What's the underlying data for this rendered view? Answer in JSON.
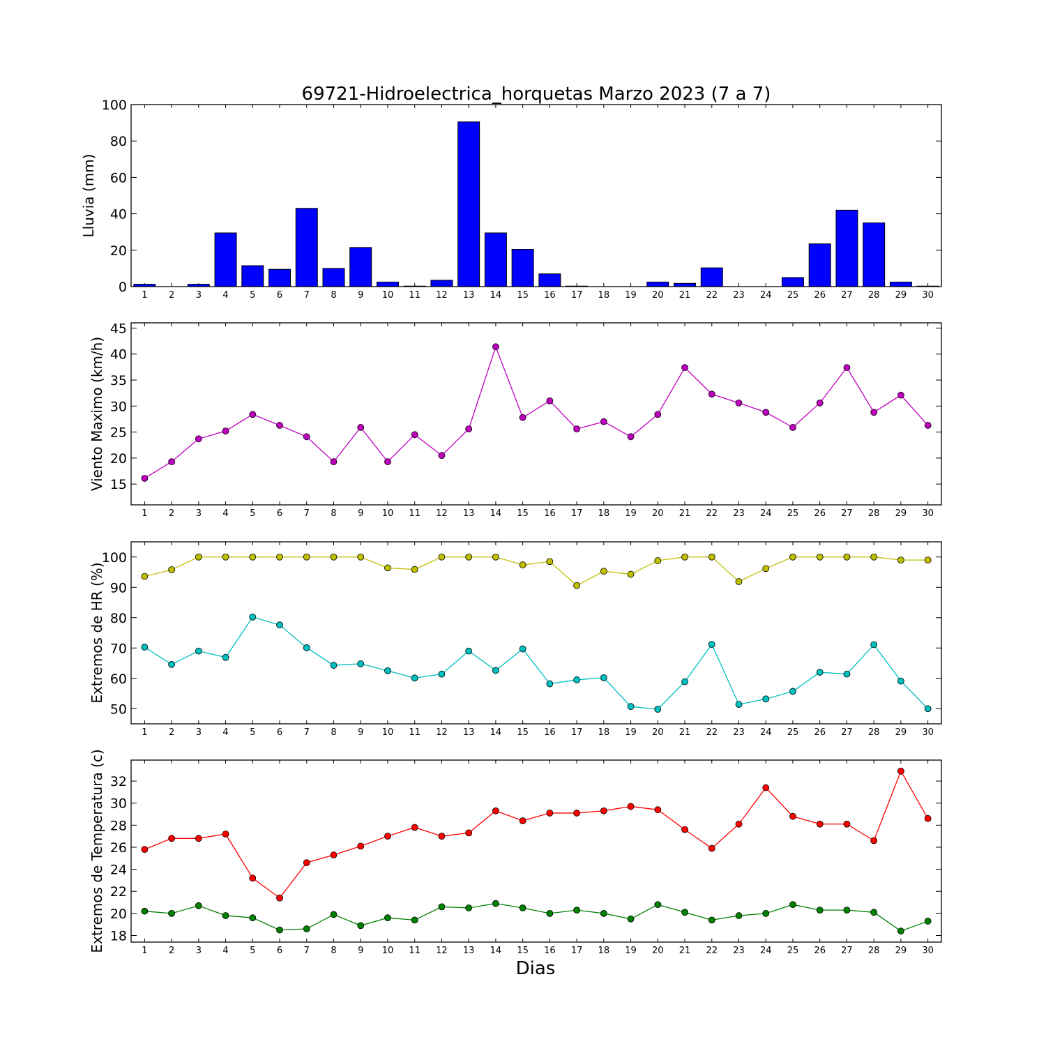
{
  "title": "69721-Hidroelectrica_horquetas Marzo 2023  (7 a 7)",
  "xlabel": "Dias",
  "days": [
    1,
    2,
    3,
    4,
    5,
    6,
    7,
    8,
    9,
    10,
    11,
    12,
    13,
    14,
    15,
    16,
    17,
    18,
    19,
    20,
    21,
    22,
    23,
    24,
    25,
    26,
    27,
    28,
    29,
    30
  ],
  "chart_data": [
    {
      "type": "bar",
      "ylabel": "Lluvia (mm)",
      "ylim": [
        0,
        100
      ],
      "yticks": [
        0,
        20,
        40,
        60,
        80,
        100
      ],
      "categories": [
        1,
        2,
        3,
        4,
        5,
        6,
        7,
        8,
        9,
        10,
        11,
        12,
        13,
        14,
        15,
        16,
        17,
        18,
        19,
        20,
        21,
        22,
        23,
        24,
        25,
        26,
        27,
        28,
        29,
        30
      ],
      "series": [
        {
          "color": "#0000ff",
          "values": [
            1.3,
            0,
            1.3,
            29.5,
            11.5,
            9.5,
            43,
            10,
            21.5,
            2.5,
            0.3,
            3.5,
            90.5,
            29.5,
            20.5,
            7,
            0.3,
            0,
            0,
            2.5,
            1.8,
            10.3,
            0,
            0,
            5,
            23.5,
            42,
            35,
            2.5,
            0.3
          ]
        }
      ]
    },
    {
      "type": "line",
      "ylabel": "Viento Maximo (km/h)",
      "ylim": [
        11,
        46
      ],
      "yticks": [
        15,
        20,
        25,
        30,
        35,
        40,
        45
      ],
      "x": [
        1,
        2,
        3,
        4,
        5,
        6,
        7,
        8,
        9,
        10,
        11,
        12,
        13,
        14,
        15,
        16,
        17,
        18,
        19,
        20,
        21,
        22,
        23,
        24,
        25,
        26,
        27,
        28,
        29,
        30
      ],
      "series": [
        {
          "color": "#bf00bf",
          "values": [
            16.1,
            19.3,
            23.7,
            25.2,
            28.4,
            26.3,
            24.1,
            19.3,
            25.9,
            19.3,
            24.5,
            20.5,
            25.6,
            41.4,
            27.8,
            31,
            25.6,
            27,
            24.1,
            28.4,
            37.4,
            32.3,
            30.6,
            28.8,
            25.9,
            30.6,
            37.4,
            28.8,
            32.1,
            26.3
          ]
        }
      ]
    },
    {
      "type": "line",
      "ylabel": "Extremos de HR (%)",
      "ylim": [
        45,
        105
      ],
      "yticks": [
        50,
        60,
        70,
        80,
        90,
        100
      ],
      "x": [
        1,
        2,
        3,
        4,
        5,
        6,
        7,
        8,
        9,
        10,
        11,
        12,
        13,
        14,
        15,
        16,
        17,
        18,
        19,
        20,
        21,
        22,
        23,
        24,
        25,
        26,
        27,
        28,
        29,
        30
      ],
      "series": [
        {
          "color": "#bfbf00",
          "values": [
            93.6,
            95.8,
            100,
            100,
            100,
            100,
            100,
            100,
            100,
            96.4,
            95.9,
            100,
            100,
            100,
            97.4,
            98.5,
            90.6,
            95.3,
            94.3,
            98.8,
            100,
            100,
            91.9,
            96.2,
            100,
            100,
            100,
            100,
            99,
            99
          ]
        },
        {
          "color": "#00bfbf",
          "values": [
            70.3,
            64.6,
            69,
            66.9,
            80.2,
            77.6,
            70.1,
            64.3,
            64.8,
            62.5,
            60.1,
            61.4,
            69,
            62.6,
            69.7,
            58.2,
            59.5,
            60.2,
            50.7,
            49.8,
            58.9,
            71.2,
            51.4,
            53.2,
            55.7,
            62,
            61.4,
            71.1,
            59.1,
            50
          ]
        }
      ]
    },
    {
      "type": "line",
      "ylabel": "Extremos de Temperatura (c)",
      "ylim": [
        17.4,
        33.9
      ],
      "yticks": [
        18,
        20,
        22,
        24,
        26,
        28,
        30,
        32
      ],
      "x": [
        1,
        2,
        3,
        4,
        5,
        6,
        7,
        8,
        9,
        10,
        11,
        12,
        13,
        14,
        15,
        16,
        17,
        18,
        19,
        20,
        21,
        22,
        23,
        24,
        25,
        26,
        27,
        28,
        29,
        30
      ],
      "series": [
        {
          "color": "#ff0000",
          "values": [
            25.8,
            26.8,
            26.8,
            27.2,
            23.2,
            21.4,
            24.6,
            25.3,
            26.1,
            27,
            27.8,
            27,
            27.3,
            29.3,
            28.4,
            29.1,
            29.1,
            29.3,
            29.7,
            29.4,
            27.6,
            25.9,
            28.1,
            31.4,
            28.8,
            28.1,
            28.1,
            26.6,
            32.9,
            28.6
          ]
        },
        {
          "color": "#008000",
          "values": [
            20.2,
            20,
            20.7,
            19.8,
            19.6,
            18.5,
            18.6,
            19.9,
            18.9,
            19.6,
            19.4,
            20.6,
            20.5,
            20.9,
            20.5,
            20,
            20.3,
            20,
            19.5,
            20.8,
            20.1,
            19.4,
            19.8,
            20,
            20.8,
            20.3,
            20.3,
            20.1,
            18.4,
            19.3
          ]
        }
      ]
    }
  ]
}
